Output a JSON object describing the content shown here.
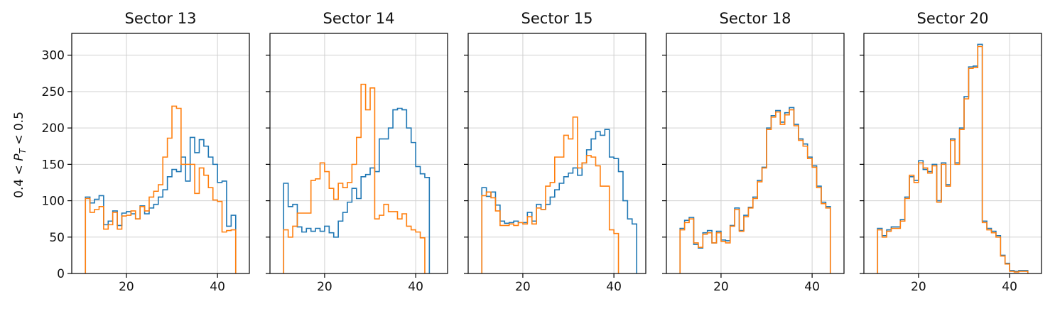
{
  "y_axis_label": "0.4 < P_T < 0.5",
  "chart_data": {
    "type": "histogram-step",
    "xlim": [
      8,
      47
    ],
    "ylim": [
      0,
      330
    ],
    "x_ticks": [
      20,
      40
    ],
    "y_ticks": [
      0,
      50,
      100,
      150,
      200,
      250,
      300
    ],
    "grid": true,
    "bin_start": 11,
    "bin_width": 1,
    "colors": [
      "#1f77b4",
      "#ff7f0e"
    ],
    "panels": [
      {
        "title": "Sector 13",
        "series": [
          {
            "values": [
              105,
              97,
              102,
              107,
              67,
              72,
              86,
              66,
              83,
              85,
              82,
              75,
              93,
              82,
              90,
              95,
              105,
              115,
              133,
              143,
              140,
              160,
              127,
              187,
              166,
              184,
              175,
              160,
              150,
              125,
              127,
              65,
              80
            ]
          },
          {
            "values": [
              103,
              84,
              88,
              92,
              61,
              67,
              84,
              61,
              79,
              80,
              86,
              75,
              92,
              86,
              105,
              113,
              122,
              160,
              186,
              230,
              227,
              150,
              150,
              150,
              110,
              145,
              135,
              118,
              101,
              99,
              57,
              59,
              60
            ]
          }
        ]
      },
      {
        "title": "Sector 14",
        "series": [
          {
            "values": [
              124,
              92,
              95,
              64,
              57,
              62,
              58,
              62,
              58,
              65,
              56,
              50,
              72,
              84,
              98,
              117,
              103,
              133,
              136,
              145,
              140,
              185,
              185,
              200,
              225,
              227,
              225,
              200,
              180,
              147,
              137,
              132
            ]
          },
          {
            "values": [
              60,
              50,
              65,
              83,
              83,
              83,
              128,
              130,
              152,
              140,
              117,
              102,
              124,
              118,
              125,
              150,
              187,
              260,
              225,
              255,
              75,
              80,
              95,
              85,
              85,
              75,
              82,
              65,
              60,
              57,
              49
            ]
          }
        ]
      },
      {
        "title": "Sector 15",
        "series": [
          {
            "values": [
              118,
              106,
              112,
              94,
              72,
              69,
              70,
              72,
              70,
              70,
              84,
              72,
              95,
              88,
              95,
              105,
              115,
              124,
              133,
              138,
              145,
              135,
              152,
              170,
              185,
              195,
              190,
              198,
              160,
              158,
              140,
              100,
              75,
              68
            ]
          },
          {
            "values": [
              107,
              112,
              104,
              86,
              66,
              66,
              68,
              66,
              70,
              68,
              78,
              68,
              90,
              88,
              120,
              125,
              160,
              160,
              190,
              185,
              215,
              145,
              152,
              162,
              160,
              148,
              120,
              120,
              60,
              55
            ]
          }
        ]
      },
      {
        "title": "Sector 18",
        "series": [
          {
            "values": [
              62,
              73,
              77,
              40,
              35,
              56,
              59,
              42,
              58,
              46,
              45,
              66,
              90,
              59,
              80,
              91,
              105,
              128,
              146,
              200,
              217,
              224,
              208,
              221,
              228,
              205,
              185,
              178,
              160,
              148,
              120,
              98,
              92
            ]
          },
          {
            "values": [
              60,
              70,
              75,
              42,
              36,
              54,
              56,
              42,
              56,
              44,
              42,
              65,
              88,
              58,
              78,
              90,
              103,
              126,
              145,
              198,
              215,
              222,
              205,
              218,
              225,
              203,
              183,
              175,
              158,
              146,
              118,
              96,
              90
            ]
          }
        ]
      },
      {
        "title": "Sector 20",
        "series": [
          {
            "values": [
              62,
              52,
              60,
              64,
              64,
              74,
              105,
              133,
              128,
              155,
              143,
              140,
              150,
              100,
              152,
              122,
              185,
              152,
              200,
              243,
              284,
              285,
              315,
              72,
              62,
              58,
              52,
              25,
              14,
              4,
              3,
              4,
              4
            ]
          },
          {
            "values": [
              60,
              50,
              58,
              62,
              62,
              72,
              103,
              135,
              125,
              152,
              145,
              138,
              148,
              98,
              150,
              120,
              183,
              150,
              198,
              240,
              282,
              283,
              312,
              70,
              60,
              56,
              50,
              24,
              13,
              3,
              2,
              3,
              3
            ]
          }
        ]
      }
    ]
  }
}
